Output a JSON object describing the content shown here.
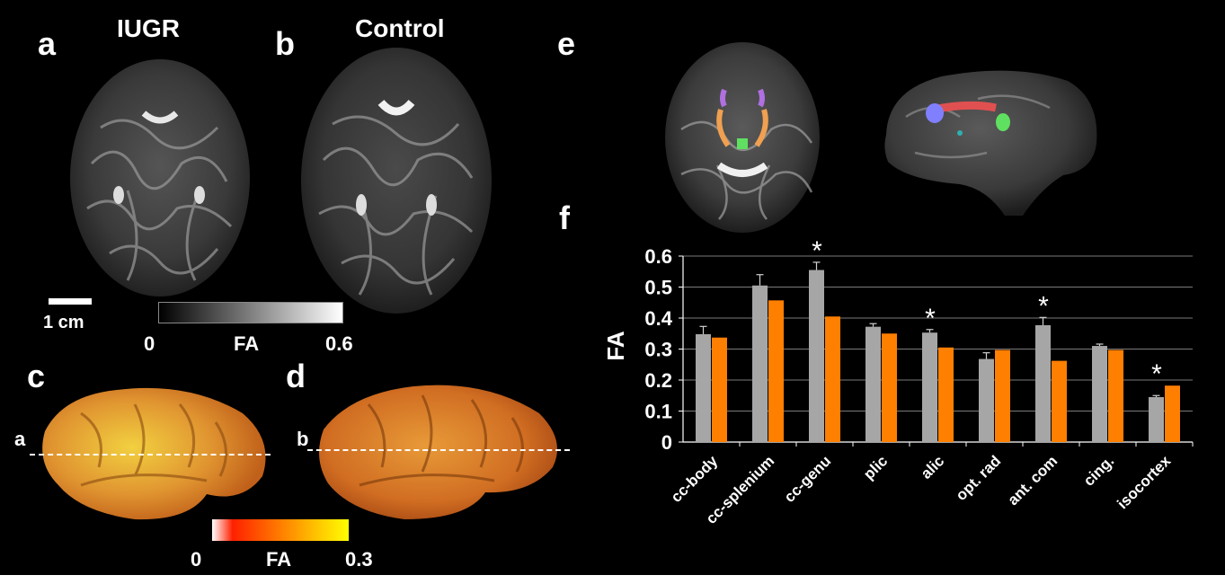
{
  "panels": {
    "a": {
      "letter": "a",
      "title": "IUGR"
    },
    "b": {
      "letter": "b",
      "title": "Control"
    },
    "c": {
      "letter": "c",
      "slice_marker": "a"
    },
    "d": {
      "letter": "d",
      "slice_marker": "b"
    },
    "e": {
      "letter": "e"
    },
    "f": {
      "letter": "f"
    }
  },
  "scale_bar": {
    "label": "1 cm"
  },
  "colorbar_gray": {
    "min": "0",
    "label": "FA",
    "max": "0.6"
  },
  "colorbar_hot": {
    "min": "0",
    "label": "FA",
    "max": "0.3"
  },
  "colors": {
    "iugr_bar": "#a6a6a6",
    "control_bar": "#ff7f00",
    "roi_purple": "#b070e0",
    "roi_orange": "#f0a050",
    "roi_green": "#60e060",
    "roi_red": "#e05050",
    "roi_blue": "#8080ff"
  },
  "chart_data": {
    "type": "bar",
    "ylabel": "FA",
    "ylim": [
      0,
      0.6
    ],
    "yticks": [
      "0",
      "0.1",
      "0.2",
      "0.3",
      "0.4",
      "0.5",
      "0.6"
    ],
    "categories": [
      "cc-body",
      "cc-splenium",
      "cc-genu",
      "plic",
      "alic",
      "opt. rad",
      "ant. com",
      "cing.",
      "isocortex"
    ],
    "series": [
      {
        "values": [
          0.348,
          0.505,
          0.555,
          0.372,
          0.353,
          0.268,
          0.377,
          0.31,
          0.145
        ],
        "errors": [
          0.025,
          0.035,
          0.025,
          0.01,
          0.01,
          0.02,
          0.025,
          0.006,
          0.005
        ]
      },
      {
        "values": [
          0.337,
          0.457,
          0.405,
          0.35,
          0.305,
          0.297,
          0.262,
          0.297,
          0.182
        ]
      }
    ],
    "significance": [
      "",
      "",
      "*",
      "",
      "*",
      "",
      "*",
      "",
      "*"
    ],
    "grid": true
  }
}
